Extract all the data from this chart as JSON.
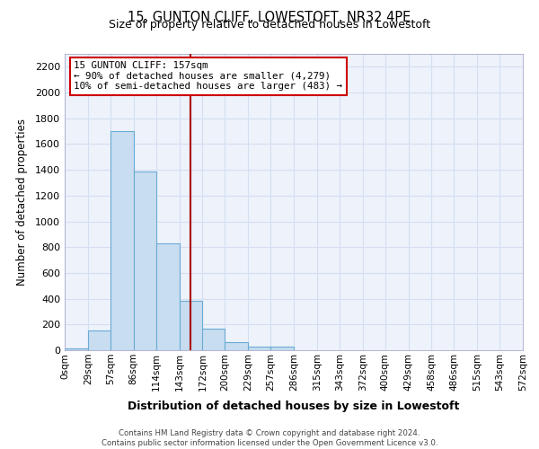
{
  "title": "15, GUNTON CLIFF, LOWESTOFT, NR32 4PE",
  "subtitle": "Size of property relative to detached houses in Lowestoft",
  "xlabel": "Distribution of detached houses by size in Lowestoft",
  "ylabel": "Number of detached properties",
  "bar_color": "#c8ddf0",
  "bar_edge_color": "#6aaad4",
  "bin_labels": [
    "0sqm",
    "29sqm",
    "57sqm",
    "86sqm",
    "114sqm",
    "143sqm",
    "172sqm",
    "200sqm",
    "229sqm",
    "257sqm",
    "286sqm",
    "315sqm",
    "343sqm",
    "372sqm",
    "400sqm",
    "429sqm",
    "458sqm",
    "486sqm",
    "515sqm",
    "543sqm",
    "572sqm"
  ],
  "bar_heights": [
    15,
    155,
    1700,
    1390,
    830,
    385,
    165,
    65,
    30,
    25,
    0,
    0,
    0,
    0,
    0,
    0,
    0,
    0,
    0,
    0
  ],
  "ylim": [
    0,
    2300
  ],
  "yticks": [
    0,
    200,
    400,
    600,
    800,
    1000,
    1200,
    1400,
    1600,
    1800,
    2000,
    2200
  ],
  "property_line_x": 157,
  "property_line_label": "15 GUNTON CLIFF: 157sqm",
  "annotation_line1": "← 90% of detached houses are smaller (4,279)",
  "annotation_line2": "10% of semi-detached houses are larger (483) →",
  "footer_line1": "Contains HM Land Registry data © Crown copyright and database right 2024.",
  "footer_line2": "Contains public sector information licensed under the Open Government Licence v3.0.",
  "bin_edges": [
    0,
    29,
    57,
    86,
    114,
    143,
    172,
    200,
    229,
    257,
    286,
    315,
    343,
    372,
    400,
    429,
    458,
    486,
    515,
    543,
    572
  ],
  "annotation_box_color": "#ffffff",
  "annotation_box_edge": "#cc0000",
  "vertical_line_color": "#aa0000",
  "grid_color": "#d4dff0",
  "bg_color": "#edf2fb"
}
